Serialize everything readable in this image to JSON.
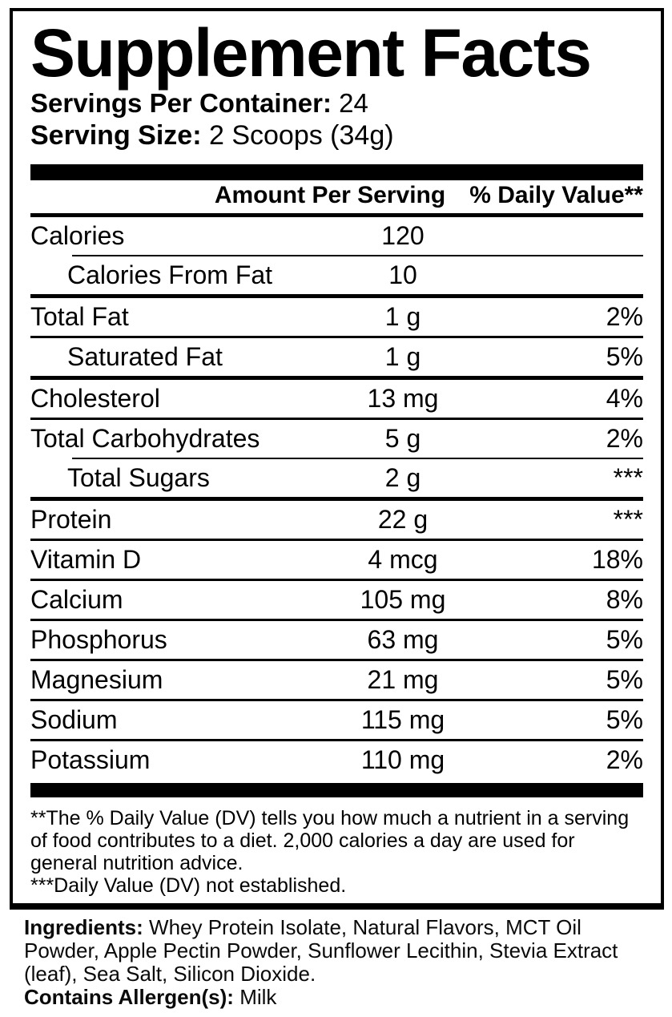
{
  "supplement_facts": {
    "title": "Supplement Facts",
    "servings_per_container_label": "Servings Per Container:",
    "servings_per_container_value": "24",
    "serving_size_label": "Serving Size:",
    "serving_size_value": "2 Scoops (34g)",
    "header": {
      "amount_column": "Amount Per Serving",
      "daily_value_column": "% Daily Value**"
    },
    "rows": [
      {
        "name": "Calories",
        "amount": "120",
        "daily_value": "",
        "sub": false,
        "rule_above": "none"
      },
      {
        "name": "Calories From Fat",
        "amount": "10",
        "daily_value": "",
        "sub": true,
        "rule_above": "indent"
      },
      {
        "name": "Total Fat",
        "amount": "1 g",
        "daily_value": "2%",
        "sub": false,
        "rule_above": "heavy"
      },
      {
        "name": "Saturated Fat",
        "amount": "1 g",
        "daily_value": "5%",
        "sub": true,
        "rule_above": "full"
      },
      {
        "name": "Cholesterol",
        "amount": "13 mg",
        "daily_value": "4%",
        "sub": false,
        "rule_above": "heavy"
      },
      {
        "name": "Total Carbohydrates",
        "amount": "5 g",
        "daily_value": "2%",
        "sub": false,
        "rule_above": "full"
      },
      {
        "name": "Total Sugars",
        "amount": "2 g",
        "daily_value": "***",
        "sub": true,
        "rule_above": "indent"
      },
      {
        "name": "Protein",
        "amount": "22 g",
        "daily_value": "***",
        "sub": false,
        "rule_above": "heavy"
      },
      {
        "name": "Vitamin D",
        "amount": "4 mcg",
        "daily_value": "18%",
        "sub": false,
        "rule_above": "full"
      },
      {
        "name": "Calcium",
        "amount": "105 mg",
        "daily_value": "8%",
        "sub": false,
        "rule_above": "full"
      },
      {
        "name": "Phosphorus",
        "amount": "63 mg",
        "daily_value": "5%",
        "sub": false,
        "rule_above": "full"
      },
      {
        "name": "Magnesium",
        "amount": "21 mg",
        "daily_value": "5%",
        "sub": false,
        "rule_above": "full"
      },
      {
        "name": "Sodium",
        "amount": "115 mg",
        "daily_value": "5%",
        "sub": false,
        "rule_above": "full"
      },
      {
        "name": "Potassium",
        "amount": "110 mg",
        "daily_value": "2%",
        "sub": false,
        "rule_above": "full"
      }
    ],
    "footnotes": [
      "**The % Daily Value (DV) tells you how much a nutrient in a serving of food contributes to a diet. 2,000 calories a day are used for general nutrition advice.",
      "***Daily Value (DV) not established."
    ],
    "ingredients_label": "Ingredients:",
    "ingredients_text": "Whey Protein Isolate, Natural Flavors, MCT Oil Powder, Apple Pectin Powder, Sunflower Lecithin, Stevia Extract (leaf), Sea Salt, Silicon Dioxide.",
    "allergen_label": "Contains Allergen(s):",
    "allergen_value": "Milk",
    "colors": {
      "text": "#000000",
      "background": "#ffffff",
      "rule": "#000000"
    }
  }
}
